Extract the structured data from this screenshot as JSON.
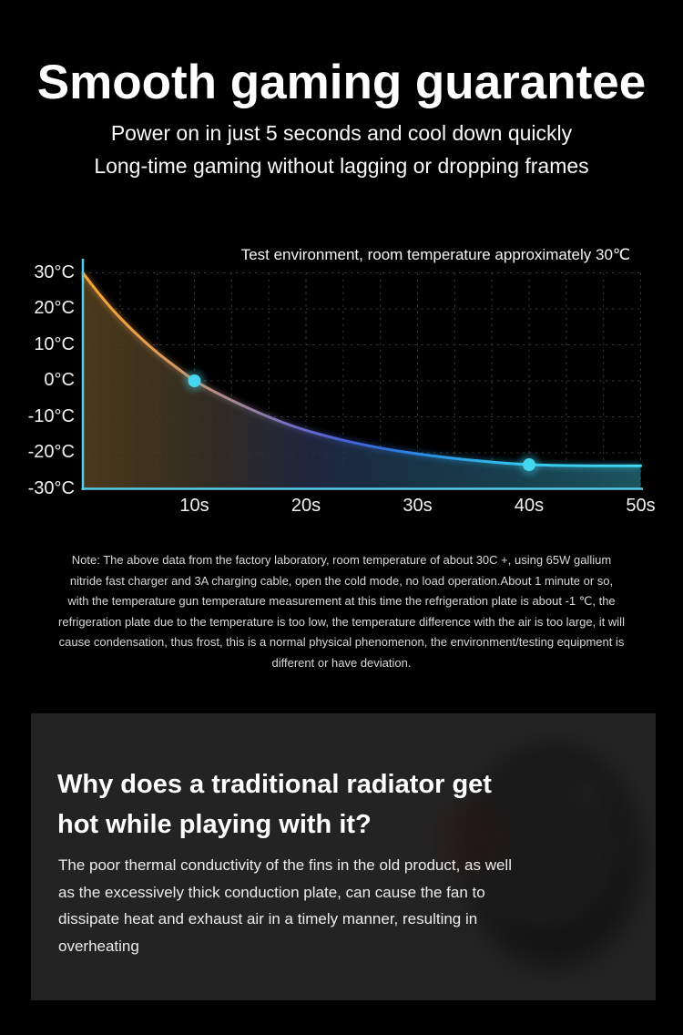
{
  "page": {
    "background": "#000000"
  },
  "hero": {
    "title": "Smooth gaming guarantee",
    "subtitle_line1": "Power on in just 5 seconds and cool down quickly",
    "subtitle_line2": "Long-time gaming without lagging or dropping frames"
  },
  "chart_data": {
    "type": "line",
    "annotation": "Test environment, room temperature approximately 30℃",
    "x_unit": "s",
    "y_unit": "°C",
    "xlim": [
      0,
      50
    ],
    "ylim": [
      -30,
      30
    ],
    "grid": "dashed",
    "x_ticks": [
      {
        "value": 10,
        "label": "10s"
      },
      {
        "value": 20,
        "label": "20s"
      },
      {
        "value": 30,
        "label": "30s"
      },
      {
        "value": 40,
        "label": "40s"
      },
      {
        "value": 50,
        "label": "50s"
      }
    ],
    "y_ticks": [
      {
        "value": 30,
        "label": "30°C"
      },
      {
        "value": 20,
        "label": "20°C"
      },
      {
        "value": 10,
        "label": "10°C"
      },
      {
        "value": 0,
        "label": "0°C"
      },
      {
        "value": -10,
        "label": "-10°C"
      },
      {
        "value": -20,
        "label": "-20°C"
      },
      {
        "value": -30,
        "label": "-30°C"
      }
    ],
    "series": [
      {
        "name": "temperature-cooling-curve",
        "points": [
          [
            0,
            30
          ],
          [
            1,
            25.9
          ],
          [
            2,
            22.1
          ],
          [
            3,
            18.6
          ],
          [
            4,
            15.4
          ],
          [
            5,
            12.4
          ],
          [
            6,
            9.6
          ],
          [
            7,
            7.0
          ],
          [
            8,
            4.6
          ],
          [
            9,
            2.3
          ],
          [
            10,
            0
          ],
          [
            12,
            -3.4
          ],
          [
            14,
            -6.4
          ],
          [
            16,
            -9.2
          ],
          [
            18,
            -11.7
          ],
          [
            20,
            -13.8
          ],
          [
            22,
            -15.5
          ],
          [
            24,
            -17.0
          ],
          [
            26,
            -18.3
          ],
          [
            28,
            -19.4
          ],
          [
            30,
            -20.3
          ],
          [
            32,
            -21.1
          ],
          [
            34,
            -21.8
          ],
          [
            36,
            -22.4
          ],
          [
            38,
            -22.9
          ],
          [
            40,
            -23.3
          ],
          [
            42,
            -23.5
          ],
          [
            45,
            -23.6
          ],
          [
            50,
            -23.6
          ]
        ]
      }
    ],
    "highlight_points": [
      {
        "x": 10,
        "y": 0
      },
      {
        "x": 40,
        "y": -23.3
      }
    ],
    "colors": {
      "axis": "#54cdea",
      "grid": "#363636",
      "dot": "#45d6f0",
      "line_gradient": [
        "#f6a833",
        "#eda04a",
        "#c69472",
        "#96819f",
        "#6f6cc3",
        "#4c5fd6",
        "#2f72dd",
        "#2a9ce4",
        "#33c3ec",
        "#41d8f2"
      ],
      "area_gradient": [
        "#55401e",
        "#3a3226",
        "#232a44",
        "#1b3a50",
        "#1b4a5a",
        "#20606e"
      ]
    }
  },
  "note": {
    "text": "Note: The above data from the factory laboratory, room temperature of about 30C +, using 65W gallium nitride fast charger and 3A charging cable, open the cold mode, no load operation.About 1 minute or so, with the temperature gun temperature measurement at this time the refrigeration plate is about -1 ℃, the refrigeration plate due to the temperature is too low, the temperature difference with the air is too large, it will cause condensation, thus frost, this is a normal physical phenomenon, the environment/testing equipment is different or have deviation."
  },
  "section": {
    "heading_line1": "Why does a traditional radiator get",
    "heading_line2": "hot while playing with it?",
    "body": "The poor thermal conductivity of the fins in the old product, as well as the excessively thick conduction plate, can cause the fan to dissipate heat and exhaust air in a timely manner, resulting in overheating"
  }
}
